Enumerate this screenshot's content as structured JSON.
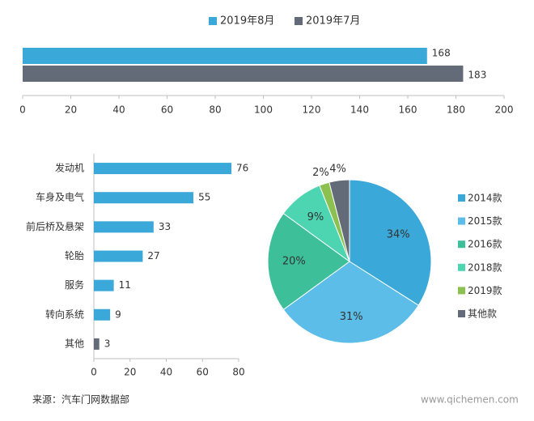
{
  "chart_data": [
    {
      "type": "bar",
      "orientation": "horizontal",
      "categories": [
        null
      ],
      "series": [
        {
          "name": "2019年8月",
          "color": "#3aa8d8",
          "values": [
            168
          ]
        },
        {
          "name": "2019年7月",
          "color": "#636b78",
          "values": [
            183
          ]
        }
      ],
      "xlim": [
        0,
        200
      ],
      "xticks": [
        0,
        20,
        40,
        60,
        80,
        100,
        120,
        140,
        160,
        180,
        200
      ],
      "legend": "top"
    },
    {
      "type": "bar",
      "orientation": "horizontal",
      "categories": [
        "发动机",
        "车身及电气",
        "前后桥及悬架",
        "轮胎",
        "服务",
        "转向系统",
        "其他"
      ],
      "values": [
        76,
        55,
        33,
        27,
        11,
        9,
        3
      ],
      "colors": [
        "#3aa8d8",
        "#3aa8d8",
        "#3aa8d8",
        "#3aa8d8",
        "#3aa8d8",
        "#3aa8d8",
        "#636b78"
      ],
      "xlim": [
        0,
        80
      ],
      "xticks": [
        0,
        20,
        40,
        60,
        80
      ]
    },
    {
      "type": "pie",
      "categories": [
        "2014款",
        "2015款",
        "2016款",
        "2018款",
        "2019款",
        "其他款"
      ],
      "values": [
        34,
        31,
        20,
        9,
        2,
        4
      ],
      "value_labels": [
        "34%",
        "31%",
        "20%",
        "9%",
        "2%",
        "4%"
      ],
      "colors": [
        "#3aa8d8",
        "#5bbde8",
        "#3dbf9a",
        "#4dd4b0",
        "#8cc152",
        "#636b78"
      ],
      "legend": "right"
    }
  ],
  "source": "来源：汽车门网数据部",
  "watermark": "www.qichemen.com"
}
